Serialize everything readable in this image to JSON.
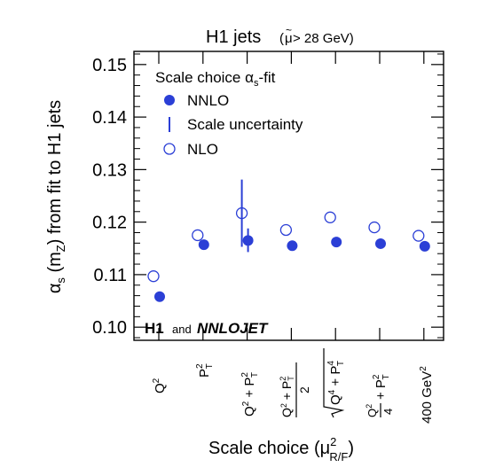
{
  "chart_data": {
    "type": "scatter",
    "title": "H1 jets",
    "subtitle": "(μ̃ > 28 GeV)",
    "title_mu_tilde": "μ",
    "title_mu_tilde_mark": "~",
    "title_cut": " > 28 GeV)",
    "title_open_paren": "(",
    "ylabel": "α_s (m_Z) from fit to H1 jets",
    "ylabel_parts": {
      "alpha": "α",
      "s": "s",
      "mid": " (m",
      "z": "Z",
      "rest": ") from fit to H1 jets"
    },
    "xlabel": "Scale choice (μ²_R/F)",
    "xlabel_parts": {
      "pre": "Scale choice (",
      "mu": "μ",
      "sup": "2",
      "sub": "R/F",
      "close": ")"
    },
    "ylim": [
      0.0975,
      0.1525
    ],
    "y_ticks": [
      "0.10",
      "0.11",
      "0.12",
      "0.13",
      "0.14",
      "0.15"
    ],
    "y_tick_values": [
      0.1,
      0.11,
      0.12,
      0.13,
      0.14,
      0.15
    ],
    "categories": [
      "Q²",
      "P_T²",
      "Q² + P_T²",
      "(Q² + P_T²)/2",
      "√(Q⁴ + P_T⁴)",
      "Q²/4 + P_T²",
      "400 GeV²"
    ],
    "series": [
      {
        "name": "NNLO",
        "marker": "filled-circle",
        "color": "#2b3fd6",
        "values": [
          0.1058,
          0.1157,
          0.1165,
          0.1155,
          0.1162,
          0.1159,
          0.1154
        ]
      },
      {
        "name": "Scale uncertainty",
        "marker": "vertical-line",
        "color": "#2b3fd6",
        "ranges": [
          null,
          null,
          [
            0.1153,
            0.1281
          ],
          null,
          null,
          null,
          null
        ],
        "ranges_inner": [
          null,
          null,
          [
            0.1143,
            0.1188
          ],
          null,
          null,
          null,
          null
        ]
      },
      {
        "name": "NLO",
        "marker": "open-circle",
        "color": "#2b3fd6",
        "values": [
          0.1097,
          0.1175,
          0.1217,
          0.1185,
          0.1209,
          0.119,
          0.1174
        ]
      }
    ],
    "legend": {
      "position": "top-left",
      "title_pre": "Scale choice ",
      "title_alpha": "α",
      "title_s": "s",
      "title_post": "-fit",
      "entries": [
        "NNLO",
        "Scale uncertainty",
        "NLO"
      ]
    },
    "branding": {
      "h1": "H1",
      "and": "and",
      "nnlojet": "NNLOJET"
    },
    "grid": false
  }
}
